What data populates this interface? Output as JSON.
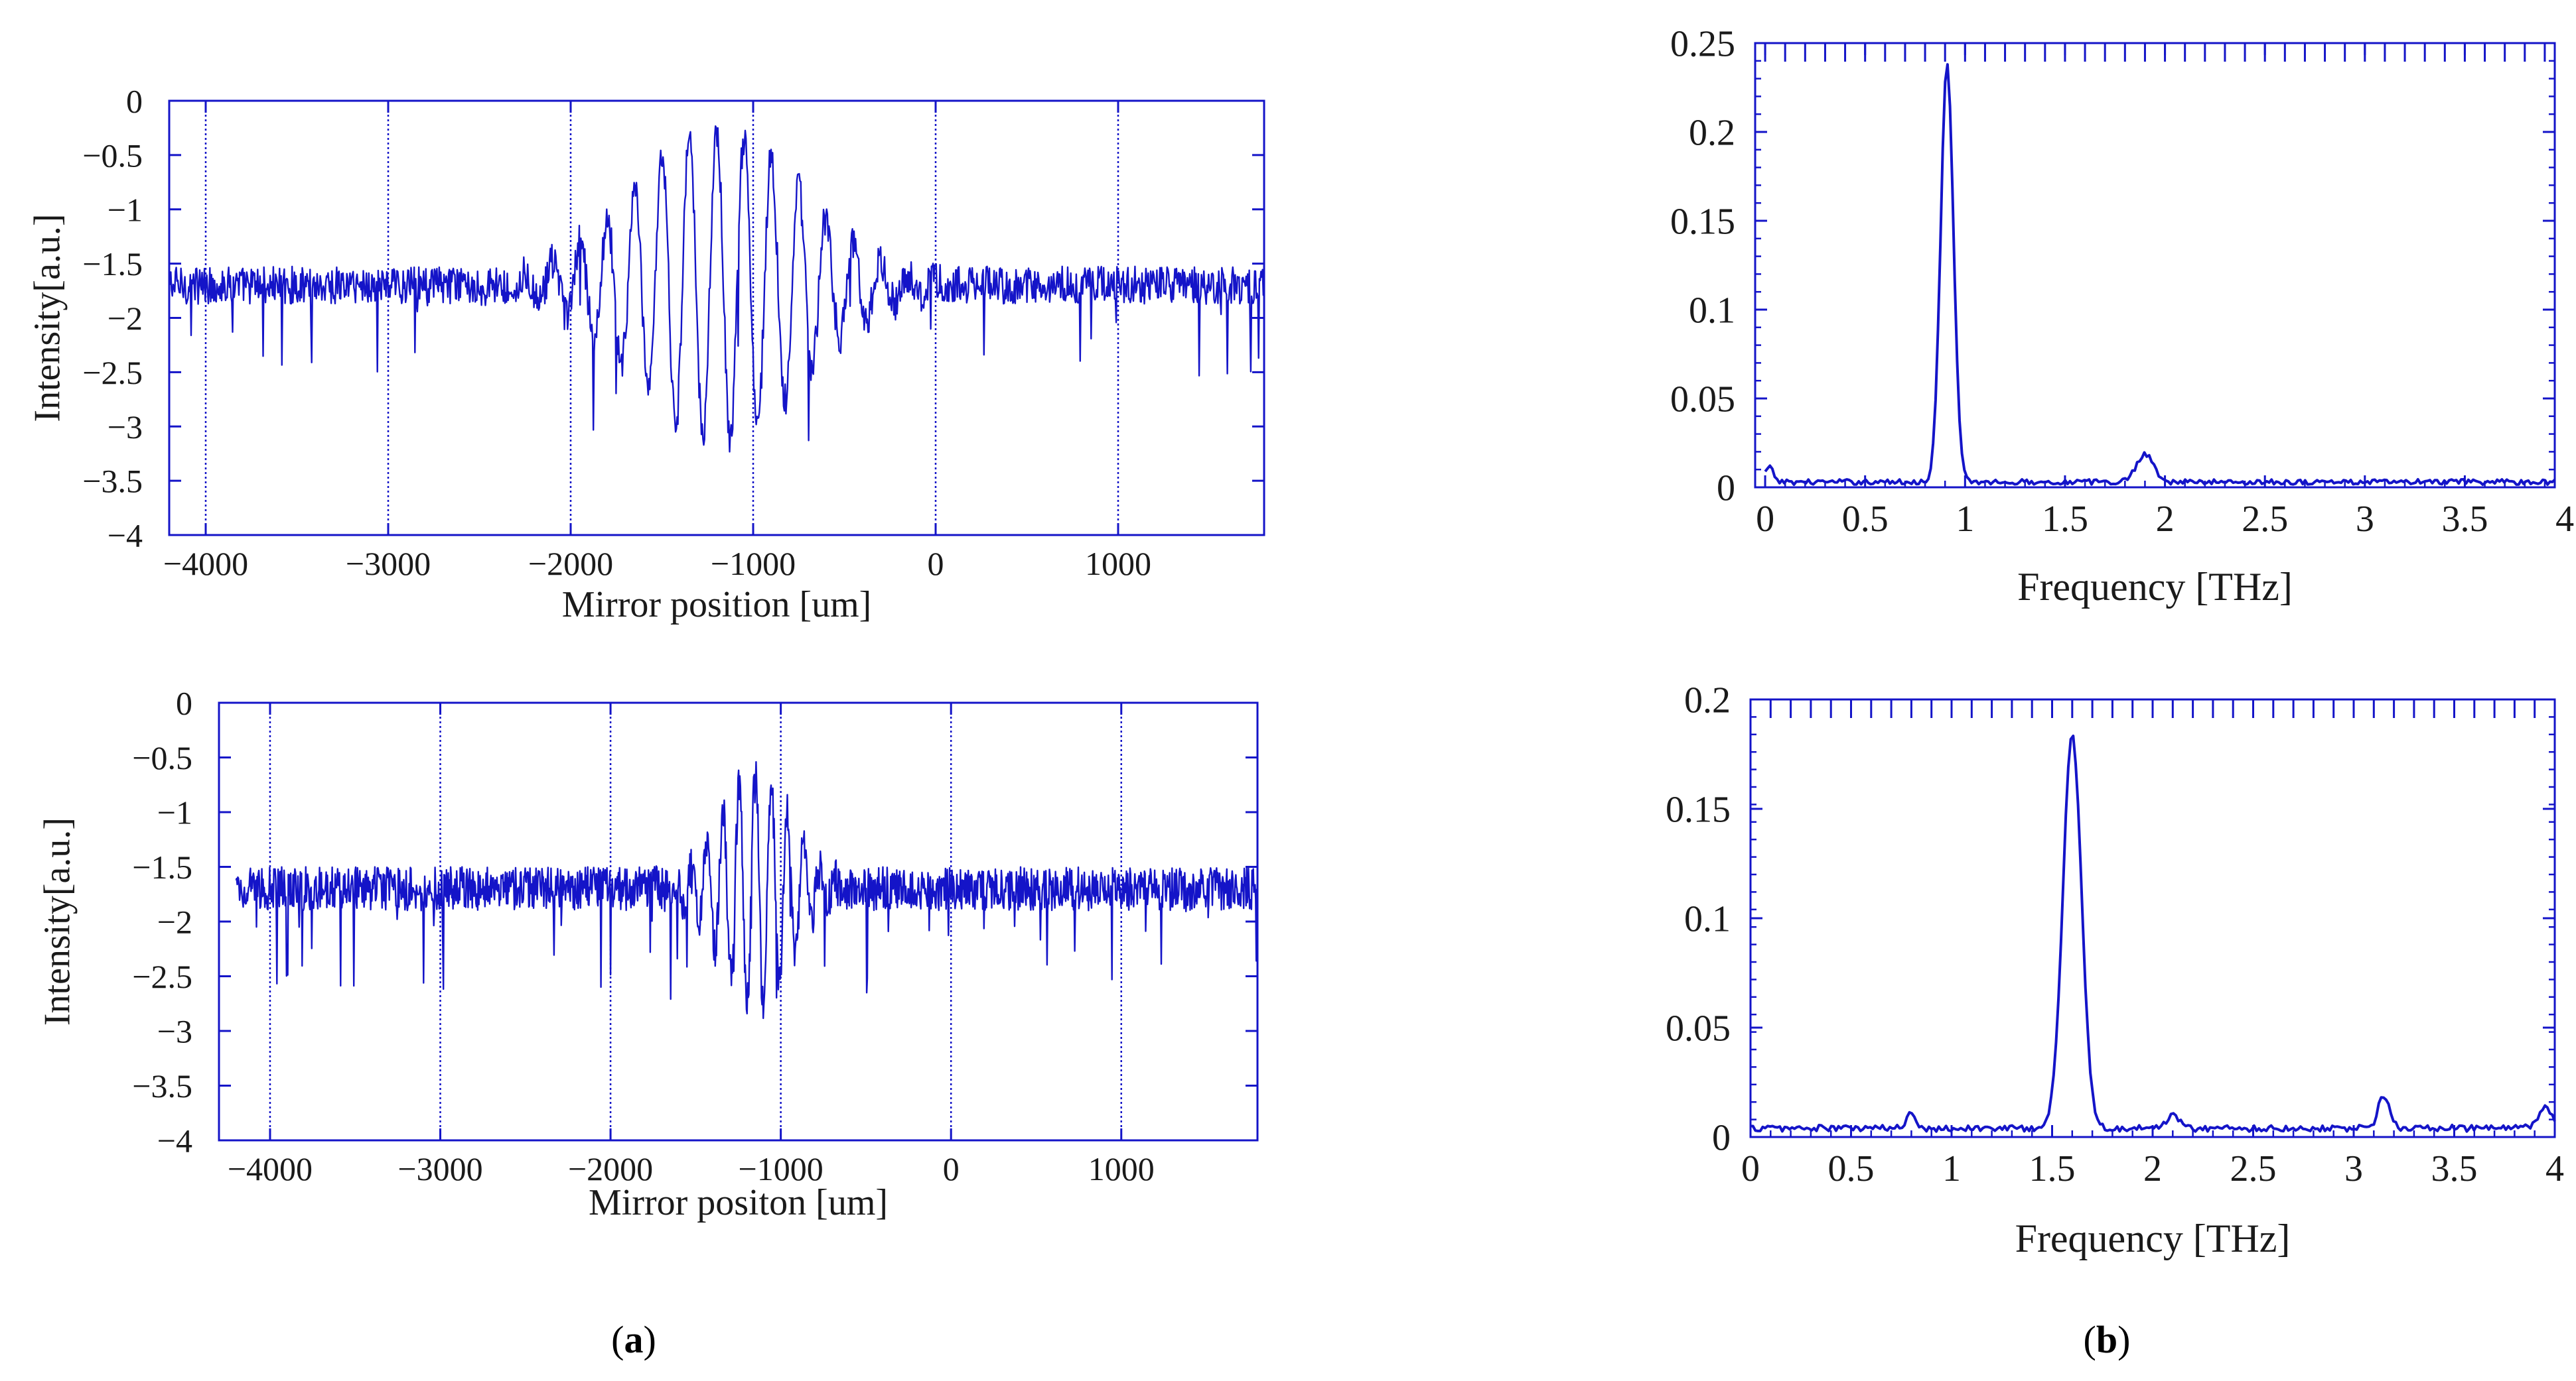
{
  "figure": {
    "panel_a_label": "a",
    "panel_b_label": "b"
  },
  "chart_data": [
    {
      "id": "a-top",
      "type": "line",
      "title": "",
      "xlabel": "Mirror position [um]",
      "ylabel": "Intensity[a.u.]",
      "xlim": [
        -4200,
        1800
      ],
      "ylim": [
        -4,
        0
      ],
      "xticks": [
        -4000,
        -3000,
        -2000,
        -1000,
        0,
        1000
      ],
      "xtick_labels": [
        "−4000",
        "−3000",
        "−2000",
        "−1000",
        "0",
        "1000"
      ],
      "yticks": [
        0,
        -0.5,
        -1,
        -1.5,
        -2,
        -2.5,
        -3,
        -3.5,
        -4
      ],
      "ytick_labels": [
        "0",
        "−0.5",
        "−1",
        "−1.5",
        "−2",
        "−2.5",
        "−3",
        "−3.5",
        "−4"
      ],
      "grid_x": true,
      "color": "#1414c8",
      "signal": {
        "baseline": -1.7,
        "center": -1200,
        "period": 150,
        "envelope_sigma": 650,
        "amplitude": 1.45,
        "noise": 0.35,
        "x_start": -4200,
        "x_end": 1800,
        "n_points": 1400
      }
    },
    {
      "id": "a-bottom",
      "type": "line",
      "title": "",
      "xlabel": "Mirror positon [um]",
      "ylabel": "Intensity[a.u.]",
      "xlim": [
        -4300,
        1800
      ],
      "ylim": [
        -4,
        0
      ],
      "xticks": [
        -4000,
        -3000,
        -2000,
        -1000,
        0,
        1000
      ],
      "xtick_labels": [
        "−4000",
        "−3000",
        "−2000",
        "−1000",
        "0",
        "1000"
      ],
      "yticks": [
        0,
        -0.5,
        -1,
        -1.5,
        -2,
        -2.5,
        -3,
        -3.5,
        -4
      ],
      "ytick_labels": [
        "0",
        "−0.5",
        "−1",
        "−1.5",
        "−2",
        "−2.5",
        "−3",
        "−3.5",
        "−4"
      ],
      "grid_x": true,
      "color": "#1414c8",
      "signal": {
        "baseline": -1.7,
        "center": -1150,
        "period": 95,
        "envelope_sigma": 280,
        "amplitude": 1.1,
        "noise": 0.4,
        "x_start": -4200,
        "x_end": 1800,
        "n_points": 1700
      }
    },
    {
      "id": "b-top",
      "type": "line",
      "title": "",
      "xlabel": "Frequency [THz]",
      "ylabel": "",
      "xlim": [
        -0.05,
        3.95
      ],
      "ylim": [
        0,
        0.25
      ],
      "xticks": [
        0,
        0.5,
        1,
        1.5,
        2,
        2.5,
        3,
        3.5,
        4
      ],
      "xtick_labels": [
        "0",
        "0.5",
        "1",
        "1.5",
        "2",
        "2.5",
        "3",
        "3.5",
        "4"
      ],
      "yticks": [
        0,
        0.05,
        0.1,
        0.15,
        0.2,
        0.25
      ],
      "ytick_labels": [
        "0",
        "0.05",
        "0.1",
        "0.15",
        "0.2",
        "0.25"
      ],
      "grid_x": false,
      "color": "#1414c8",
      "peaks": [
        {
          "x": 0.91,
          "y": 0.235,
          "width": 0.045
        },
        {
          "x": 1.9,
          "y": 0.016,
          "width": 0.06
        },
        {
          "x": 0.02,
          "y": 0.008,
          "width": 0.03
        }
      ],
      "floor": 0.003,
      "noise": 0.003,
      "n_points": 330
    },
    {
      "id": "b-bottom",
      "type": "line",
      "title": "",
      "xlabel": "Frequency [THz]",
      "ylabel": "",
      "xlim": [
        0,
        4
      ],
      "ylim": [
        0,
        0.2
      ],
      "xticks": [
        0,
        0.5,
        1,
        1.5,
        2,
        2.5,
        3,
        3.5,
        4
      ],
      "xtick_labels": [
        "0",
        "0.5",
        "1",
        "1.5",
        "2",
        "2.5",
        "3",
        "3.5",
        "4"
      ],
      "yticks": [
        0,
        0.05,
        0.1,
        0.15,
        0.2
      ],
      "ytick_labels": [
        "0",
        "0.05",
        "0.1",
        "0.15",
        "0.2"
      ],
      "grid_x": false,
      "color": "#1414c8",
      "peaks": [
        {
          "x": 1.6,
          "y": 0.18,
          "width": 0.065
        },
        {
          "x": 3.15,
          "y": 0.015,
          "width": 0.04
        },
        {
          "x": 0.8,
          "y": 0.008,
          "width": 0.03
        },
        {
          "x": 2.1,
          "y": 0.007,
          "width": 0.04
        },
        {
          "x": 3.95,
          "y": 0.009,
          "width": 0.05
        }
      ],
      "floor": 0.004,
      "noise": 0.003,
      "n_points": 330
    }
  ]
}
